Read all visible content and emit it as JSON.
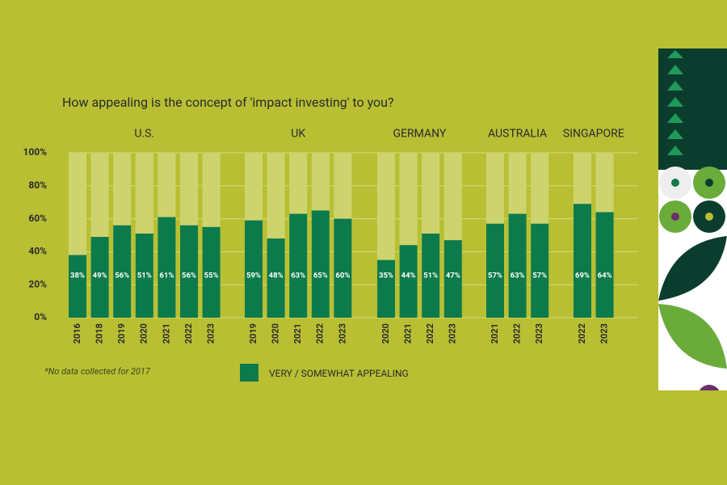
{
  "chart_data": {
    "type": "bar",
    "title": "How appealing is the concept of 'impact investing' to you?",
    "groups": [
      {
        "name": "U.S.",
        "categories": [
          "2016",
          "2018",
          "2019",
          "2020",
          "2021",
          "2022",
          "2023"
        ],
        "values": [
          38,
          49,
          56,
          51,
          61,
          56,
          55
        ],
        "value_labels": [
          "38%",
          "49%",
          "56%",
          "51%",
          "61%",
          "56%",
          "55%"
        ]
      },
      {
        "name": "UK",
        "categories": [
          "2019",
          "2020",
          "2021",
          "2022",
          "2023"
        ],
        "values": [
          59,
          48,
          63,
          65,
          60
        ],
        "value_labels": [
          "59%",
          "48%",
          "63%",
          "65%",
          "60%"
        ]
      },
      {
        "name": "GERMANY",
        "categories": [
          "2020",
          "2021",
          "2022",
          "2023"
        ],
        "values": [
          35,
          44,
          51,
          47
        ],
        "value_labels": [
          "35%",
          "44%",
          "51%",
          "47%"
        ]
      },
      {
        "name": "AUSTRALIA",
        "categories": [
          "2021",
          "2022",
          "2023"
        ],
        "values": [
          57,
          63,
          57
        ],
        "value_labels": [
          "57%",
          "63%",
          "57%"
        ]
      },
      {
        "name": "SINGAPORE",
        "categories": [
          "2022",
          "2023"
        ],
        "values": [
          69,
          64
        ],
        "value_labels": [
          "69%",
          "64%"
        ]
      }
    ],
    "series_name": "VERY / SOMEWHAT APPEALING",
    "color": "#0d7a4c",
    "ylim": [
      0,
      100
    ],
    "yticks": [
      {
        "value": 0,
        "label": "0%"
      },
      {
        "value": 20,
        "label": "20%"
      },
      {
        "value": 40,
        "label": "40%"
      },
      {
        "value": 60,
        "label": "60%"
      },
      {
        "value": 80,
        "label": "80%"
      },
      {
        "value": 100,
        "label": "100%"
      }
    ],
    "grid": true,
    "footnote": "*No data collected for 2017"
  }
}
